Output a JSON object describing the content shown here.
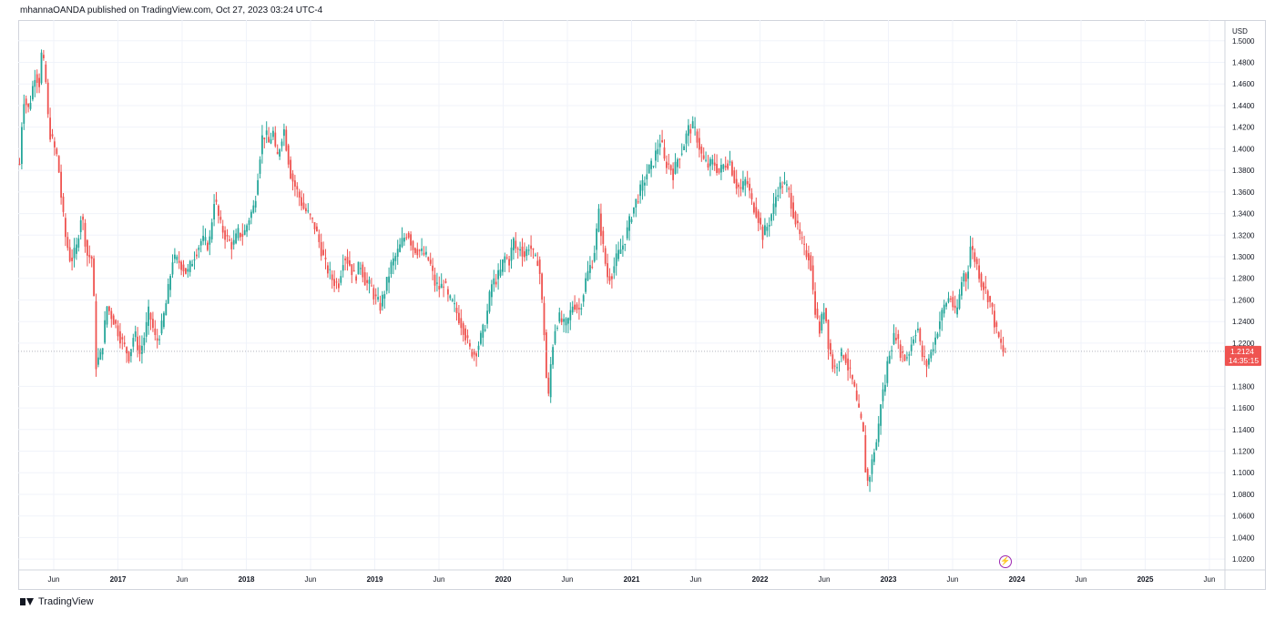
{
  "header": {
    "published_text": "mhannaOANDA published on TradingView.com, Oct 27, 2023 03:24 UTC-4"
  },
  "footer": {
    "brand": "TradingView"
  },
  "icons": {
    "logo": "tradingview-logo-icon",
    "event": "lightning-icon"
  },
  "colors": {
    "up": "#26a69a",
    "down": "#ef5350",
    "grid": "#f0f3fa",
    "price_line": "#b2b5be"
  },
  "chart_data": {
    "type": "candlestick",
    "currency": "USD",
    "ylim": [
      1.01,
      1.515
    ],
    "y_ticks": [
      "1.5000",
      "1.4800",
      "1.4600",
      "1.4400",
      "1.4200",
      "1.4000",
      "1.3800",
      "1.3600",
      "1.3400",
      "1.3200",
      "1.3000",
      "1.2800",
      "1.2600",
      "1.2400",
      "1.2200",
      "1.1800",
      "1.1600",
      "1.1400",
      "1.1200",
      "1.1000",
      "1.0800",
      "1.0600",
      "1.0400",
      "1.0200"
    ],
    "x_ticks": [
      "Jun",
      "2017",
      "Jun",
      "2018",
      "Jun",
      "2019",
      "Jun",
      "2020",
      "Jun",
      "2021",
      "Jun",
      "2022",
      "Jun",
      "2023",
      "Jun",
      "2024",
      "Jun",
      "2025",
      "Jun"
    ],
    "x_ticks_bold": [
      "2017",
      "2018",
      "2019",
      "2020",
      "2021",
      "2022",
      "2023",
      "2024",
      "2025"
    ],
    "last_price": "1.2124",
    "countdown": "14:35:15",
    "price_path": [
      [
        0,
        1.386
      ],
      [
        4,
        1.448
      ],
      [
        10,
        1.436
      ],
      [
        17,
        1.47
      ],
      [
        22,
        1.46
      ],
      [
        24,
        1.487
      ],
      [
        28,
        1.472
      ],
      [
        32,
        1.418
      ],
      [
        42,
        1.39
      ],
      [
        46,
        1.352
      ],
      [
        50,
        1.32
      ],
      [
        56,
        1.296
      ],
      [
        62,
        1.306
      ],
      [
        68,
        1.342
      ],
      [
        74,
        1.302
      ],
      [
        80,
        1.298
      ],
      [
        84,
        1.2
      ],
      [
        90,
        1.212
      ],
      [
        96,
        1.254
      ],
      [
        104,
        1.24
      ],
      [
        112,
        1.222
      ],
      [
        120,
        1.208
      ],
      [
        126,
        1.23
      ],
      [
        132,
        1.21
      ],
      [
        138,
        1.23
      ],
      [
        142,
        1.25
      ],
      [
        150,
        1.22
      ],
      [
        156,
        1.235
      ],
      [
        162,
        1.262
      ],
      [
        168,
        1.298
      ],
      [
        176,
        1.295
      ],
      [
        184,
        1.284
      ],
      [
        192,
        1.302
      ],
      [
        200,
        1.316
      ],
      [
        208,
        1.31
      ],
      [
        214,
        1.356
      ],
      [
        220,
        1.33
      ],
      [
        228,
        1.316
      ],
      [
        234,
        1.31
      ],
      [
        240,
        1.322
      ],
      [
        246,
        1.32
      ],
      [
        252,
        1.336
      ],
      [
        258,
        1.348
      ],
      [
        262,
        1.38
      ],
      [
        266,
        1.41
      ],
      [
        270,
        1.414
      ],
      [
        274,
        1.404
      ],
      [
        278,
        1.418
      ],
      [
        282,
        1.388
      ],
      [
        286,
        1.404
      ],
      [
        290,
        1.42
      ],
      [
        294,
        1.396
      ],
      [
        298,
        1.375
      ],
      [
        304,
        1.362
      ],
      [
        312,
        1.345
      ],
      [
        318,
        1.338
      ],
      [
        324,
        1.328
      ],
      [
        330,
        1.31
      ],
      [
        336,
        1.292
      ],
      [
        344,
        1.278
      ],
      [
        350,
        1.274
      ],
      [
        356,
        1.302
      ],
      [
        362,
        1.294
      ],
      [
        368,
        1.28
      ],
      [
        374,
        1.294
      ],
      [
        380,
        1.276
      ],
      [
        386,
        1.272
      ],
      [
        390,
        1.262
      ],
      [
        396,
        1.254
      ],
      [
        402,
        1.272
      ],
      [
        408,
        1.292
      ],
      [
        414,
        1.302
      ],
      [
        420,
        1.314
      ],
      [
        426,
        1.324
      ],
      [
        432,
        1.308
      ],
      [
        438,
        1.306
      ],
      [
        444,
        1.302
      ],
      [
        450,
        1.296
      ],
      [
        456,
        1.275
      ],
      [
        462,
        1.27
      ],
      [
        466,
        1.278
      ],
      [
        470,
        1.262
      ],
      [
        476,
        1.256
      ],
      [
        482,
        1.244
      ],
      [
        488,
        1.232
      ],
      [
        494,
        1.214
      ],
      [
        500,
        1.21
      ],
      [
        506,
        1.224
      ],
      [
        512,
        1.24
      ],
      [
        518,
        1.274
      ],
      [
        524,
        1.28
      ],
      [
        528,
        1.286
      ],
      [
        532,
        1.3
      ],
      [
        538,
        1.296
      ],
      [
        542,
        1.316
      ],
      [
        546,
        1.304
      ],
      [
        550,
        1.31
      ],
      [
        554,
        1.3
      ],
      [
        560,
        1.312
      ],
      [
        566,
        1.296
      ],
      [
        570,
        1.298
      ],
      [
        576,
        1.23
      ],
      [
        580,
        1.16
      ],
      [
        584,
        1.21
      ],
      [
        588,
        1.234
      ],
      [
        592,
        1.244
      ],
      [
        598,
        1.236
      ],
      [
        602,
        1.24
      ],
      [
        608,
        1.258
      ],
      [
        614,
        1.25
      ],
      [
        618,
        1.262
      ],
      [
        622,
        1.28
      ],
      [
        626,
        1.29
      ],
      [
        630,
        1.298
      ],
      [
        636,
        1.34
      ],
      [
        642,
        1.3
      ],
      [
        646,
        1.28
      ],
      [
        650,
        1.284
      ],
      [
        656,
        1.3
      ],
      [
        662,
        1.31
      ],
      [
        666,
        1.32
      ],
      [
        672,
        1.34
      ],
      [
        678,
        1.354
      ],
      [
        684,
        1.366
      ],
      [
        690,
        1.38
      ],
      [
        694,
        1.384
      ],
      [
        698,
        1.394
      ],
      [
        704,
        1.41
      ],
      [
        708,
        1.388
      ],
      [
        714,
        1.384
      ],
      [
        718,
        1.376
      ],
      [
        722,
        1.39
      ],
      [
        728,
        1.4
      ],
      [
        734,
        1.418
      ],
      [
        740,
        1.42
      ],
      [
        744,
        1.41
      ],
      [
        750,
        1.39
      ],
      [
        756,
        1.384
      ],
      [
        762,
        1.388
      ],
      [
        768,
        1.378
      ],
      [
        774,
        1.386
      ],
      [
        780,
        1.388
      ],
      [
        786,
        1.368
      ],
      [
        792,
        1.362
      ],
      [
        798,
        1.372
      ],
      [
        804,
        1.35
      ],
      [
        810,
        1.34
      ],
      [
        816,
        1.32
      ],
      [
        822,
        1.33
      ],
      [
        828,
        1.346
      ],
      [
        832,
        1.362
      ],
      [
        838,
        1.368
      ],
      [
        844,
        1.362
      ],
      [
        850,
        1.34
      ],
      [
        856,
        1.32
      ],
      [
        862,
        1.305
      ],
      [
        868,
        1.3
      ],
      [
        872,
        1.26
      ],
      [
        878,
        1.23
      ],
      [
        884,
        1.256
      ],
      [
        888,
        1.22
      ],
      [
        894,
        1.194
      ],
      [
        900,
        1.208
      ],
      [
        906,
        1.21
      ],
      [
        910,
        1.196
      ],
      [
        916,
        1.18
      ],
      [
        920,
        1.16
      ],
      [
        926,
        1.14
      ],
      [
        930,
        1.088
      ],
      [
        934,
        1.1
      ],
      [
        938,
        1.12
      ],
      [
        942,
        1.132
      ],
      [
        946,
        1.17
      ],
      [
        950,
        1.18
      ],
      [
        954,
        1.21
      ],
      [
        958,
        1.22
      ],
      [
        962,
        1.23
      ],
      [
        966,
        1.214
      ],
      [
        972,
        1.206
      ],
      [
        976,
        1.21
      ],
      [
        982,
        1.228
      ],
      [
        986,
        1.236
      ],
      [
        990,
        1.21
      ],
      [
        996,
        1.2
      ],
      [
        1000,
        1.21
      ],
      [
        1006,
        1.226
      ],
      [
        1010,
        1.24
      ],
      [
        1016,
        1.256
      ],
      [
        1022,
        1.264
      ],
      [
        1028,
        1.244
      ],
      [
        1032,
        1.264
      ],
      [
        1036,
        1.286
      ],
      [
        1040,
        1.278
      ],
      [
        1044,
        1.31
      ],
      [
        1048,
        1.3
      ],
      [
        1052,
        1.29
      ],
      [
        1056,
        1.276
      ],
      [
        1060,
        1.27
      ],
      [
        1064,
        1.262
      ],
      [
        1068,
        1.25
      ],
      [
        1072,
        1.232
      ],
      [
        1076,
        1.222
      ],
      [
        1080,
        1.212
      ],
      [
        1084,
        1.212
      ]
    ]
  }
}
